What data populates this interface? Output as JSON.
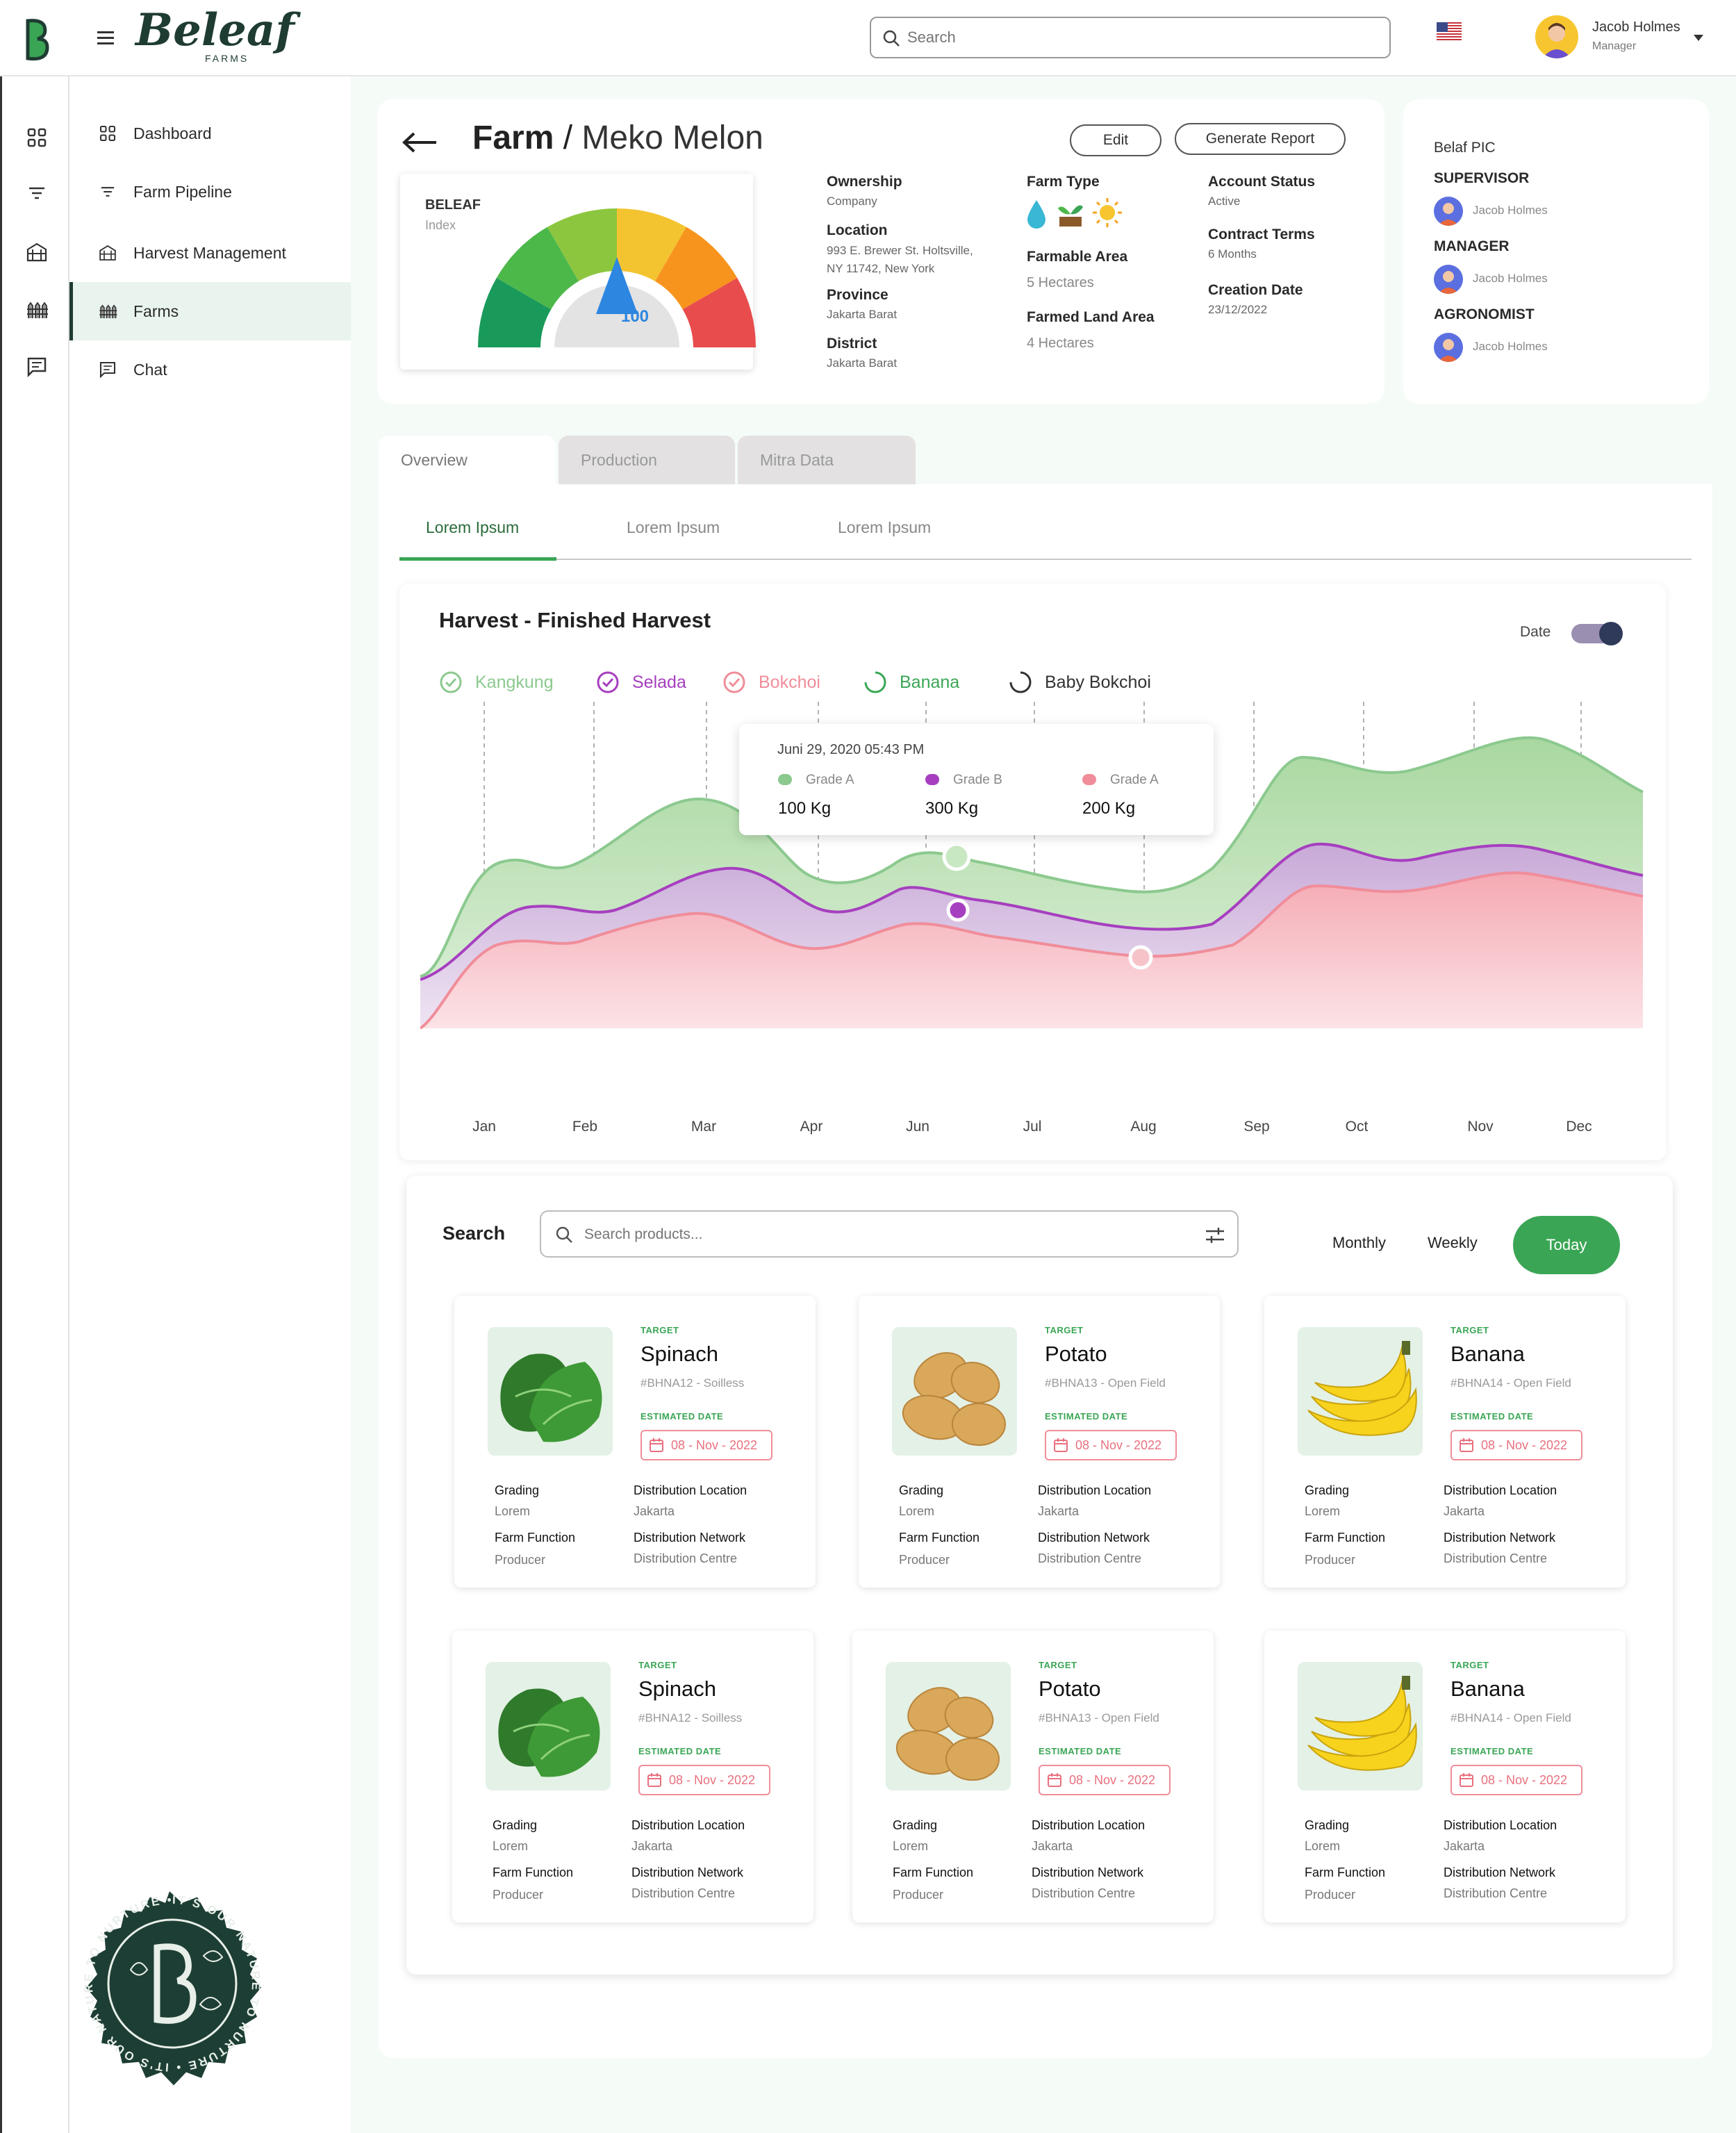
{
  "brand": {
    "name": "Beleaf",
    "sub": "FARMS",
    "monogram": "B"
  },
  "header": {
    "search_placeholder": "Search",
    "user_name": "Jacob Holmes",
    "user_role": "Manager"
  },
  "sidebar": {
    "items": [
      {
        "label": "Dashboard",
        "icon": "grid-icon"
      },
      {
        "label": "Farm Pipeline",
        "icon": "filter-icon"
      },
      {
        "label": "Harvest Management",
        "icon": "barn-icon"
      },
      {
        "label": "Farms",
        "icon": "fence-icon",
        "active": true
      },
      {
        "label": "Chat",
        "icon": "chat-icon"
      }
    ]
  },
  "farm": {
    "breadcrumb_root": "Farm",
    "separator": "/",
    "name": "Meko Melon",
    "edit_label": "Edit",
    "report_label": "Generate Report",
    "index_title": "BELEAF",
    "index_sub": "Index",
    "index_value": "100",
    "ownership_label": "Ownership",
    "ownership_value": "Company",
    "location_label": "Location",
    "location_line1": "993 E. Brewer St. Holtsville,",
    "location_line2": "NY 11742, New York",
    "province_label": "Province",
    "province_value": "Jakarta Barat",
    "district_label": "District",
    "district_value": "Jakarta Barat",
    "farm_type_label": "Farm Type",
    "farmable_label": "Farmable Area",
    "farmable_value": "5 Hectares",
    "farmed_label": "Farmed Land Area",
    "farmed_value": "4 Hectares",
    "account_status_label": "Account Status",
    "account_status_value": "Active",
    "contract_label": "Contract Terms",
    "contract_value": "6 Months",
    "creation_label": "Creation Date",
    "creation_value": "23/12/2022"
  },
  "pic": {
    "title": "Belaf PIC",
    "roles": [
      {
        "role": "SUPERVISOR",
        "name": "Jacob Holmes"
      },
      {
        "role": "MANAGER",
        "name": "Jacob Holmes"
      },
      {
        "role": "AGRONOMIST",
        "name": "Jacob Holmes"
      }
    ]
  },
  "tabs": [
    "Overview",
    "Production",
    "Mitra Data"
  ],
  "subtabs": [
    "Lorem Ipsum",
    "Lorem Ipsum",
    "Lorem Ipsum"
  ],
  "chart_data": {
    "type": "area",
    "title": "Harvest - Finished Harvest",
    "toggle_label": "Date",
    "categories": [
      "Jan",
      "Feb",
      "Mar",
      "Apr",
      "Jun",
      "Jul",
      "Aug",
      "Sep",
      "Oct",
      "Nov",
      "Dec"
    ],
    "series": [
      {
        "name": "Kangkung",
        "color": "#8cc98f",
        "checked": true
      },
      {
        "name": "Selada",
        "color": "#a63fbf",
        "checked": true
      },
      {
        "name": "Bokchoi",
        "color": "#f08d9a",
        "checked": true
      },
      {
        "name": "Banana",
        "color": "#3aa655",
        "checked": false
      },
      {
        "name": "Baby Bokchoi",
        "color": "#333333",
        "checked": false
      }
    ],
    "tooltip": {
      "date": "Juni 29, 2020 05:43 PM",
      "items": [
        {
          "grade": "Grade A",
          "value": "100 Kg",
          "color": "#8cc98f"
        },
        {
          "grade": "Grade B",
          "value": "300 Kg",
          "color": "#a63fbf"
        },
        {
          "grade": "Grade A",
          "value": "200 Kg",
          "color": "#f08d9a"
        }
      ]
    }
  },
  "products": {
    "search_label": "Search",
    "search_placeholder": "Search products...",
    "periods": [
      "Monthly",
      "Weekly",
      "Today"
    ],
    "target_label": "TARGET",
    "est_label": "ESTIMATED DATE",
    "grading_label": "Grading",
    "dist_loc_label": "Distribution Location",
    "farm_fn_label": "Farm Function",
    "dist_net_label": "Distribution Network",
    "items": [
      {
        "name": "Spinach",
        "code": "#BHNA12 - Soilless",
        "date": "08 - Nov - 2022",
        "grading": "Lorem",
        "location": "Jakarta",
        "function": "Producer",
        "network": "Distribution Centre",
        "kind": "spinach"
      },
      {
        "name": "Potato",
        "code": "#BHNA13 - Open Field",
        "date": "08 - Nov - 2022",
        "grading": "Lorem",
        "location": "Jakarta",
        "function": "Producer",
        "network": "Distribution Centre",
        "kind": "potato"
      },
      {
        "name": "Banana",
        "code": "#BHNA14 - Open Field",
        "date": "08 - Nov - 2022",
        "grading": "Lorem",
        "location": "Jakarta",
        "function": "Producer",
        "network": "Distribution Centre",
        "kind": "banana"
      },
      {
        "name": "Spinach",
        "code": "#BHNA12 - Soilless",
        "date": "08 - Nov - 2022",
        "grading": "Lorem",
        "location": "Jakarta",
        "function": "Producer",
        "network": "Distribution Centre",
        "kind": "spinach"
      },
      {
        "name": "Potato",
        "code": "#BHNA13 - Open Field",
        "date": "08 - Nov - 2022",
        "grading": "Lorem",
        "location": "Jakarta",
        "function": "Producer",
        "network": "Distribution Centre",
        "kind": "potato"
      },
      {
        "name": "Banana",
        "code": "#BHNA14 - Open Field",
        "date": "08 - Nov - 2022",
        "grading": "Lorem",
        "location": "Jakarta",
        "function": "Producer",
        "network": "Distribution Centre",
        "kind": "banana"
      }
    ]
  },
  "seal": {
    "text": "IT'S OUR NATURE TO NURTURE • IT'S OUR NATURE TO NURTURE •"
  },
  "colors": {
    "brand_dark": "#1f3c33",
    "brand_green": "#3aa655",
    "accent_pink": "#f08d9a",
    "accent_purple": "#a63fbf"
  }
}
